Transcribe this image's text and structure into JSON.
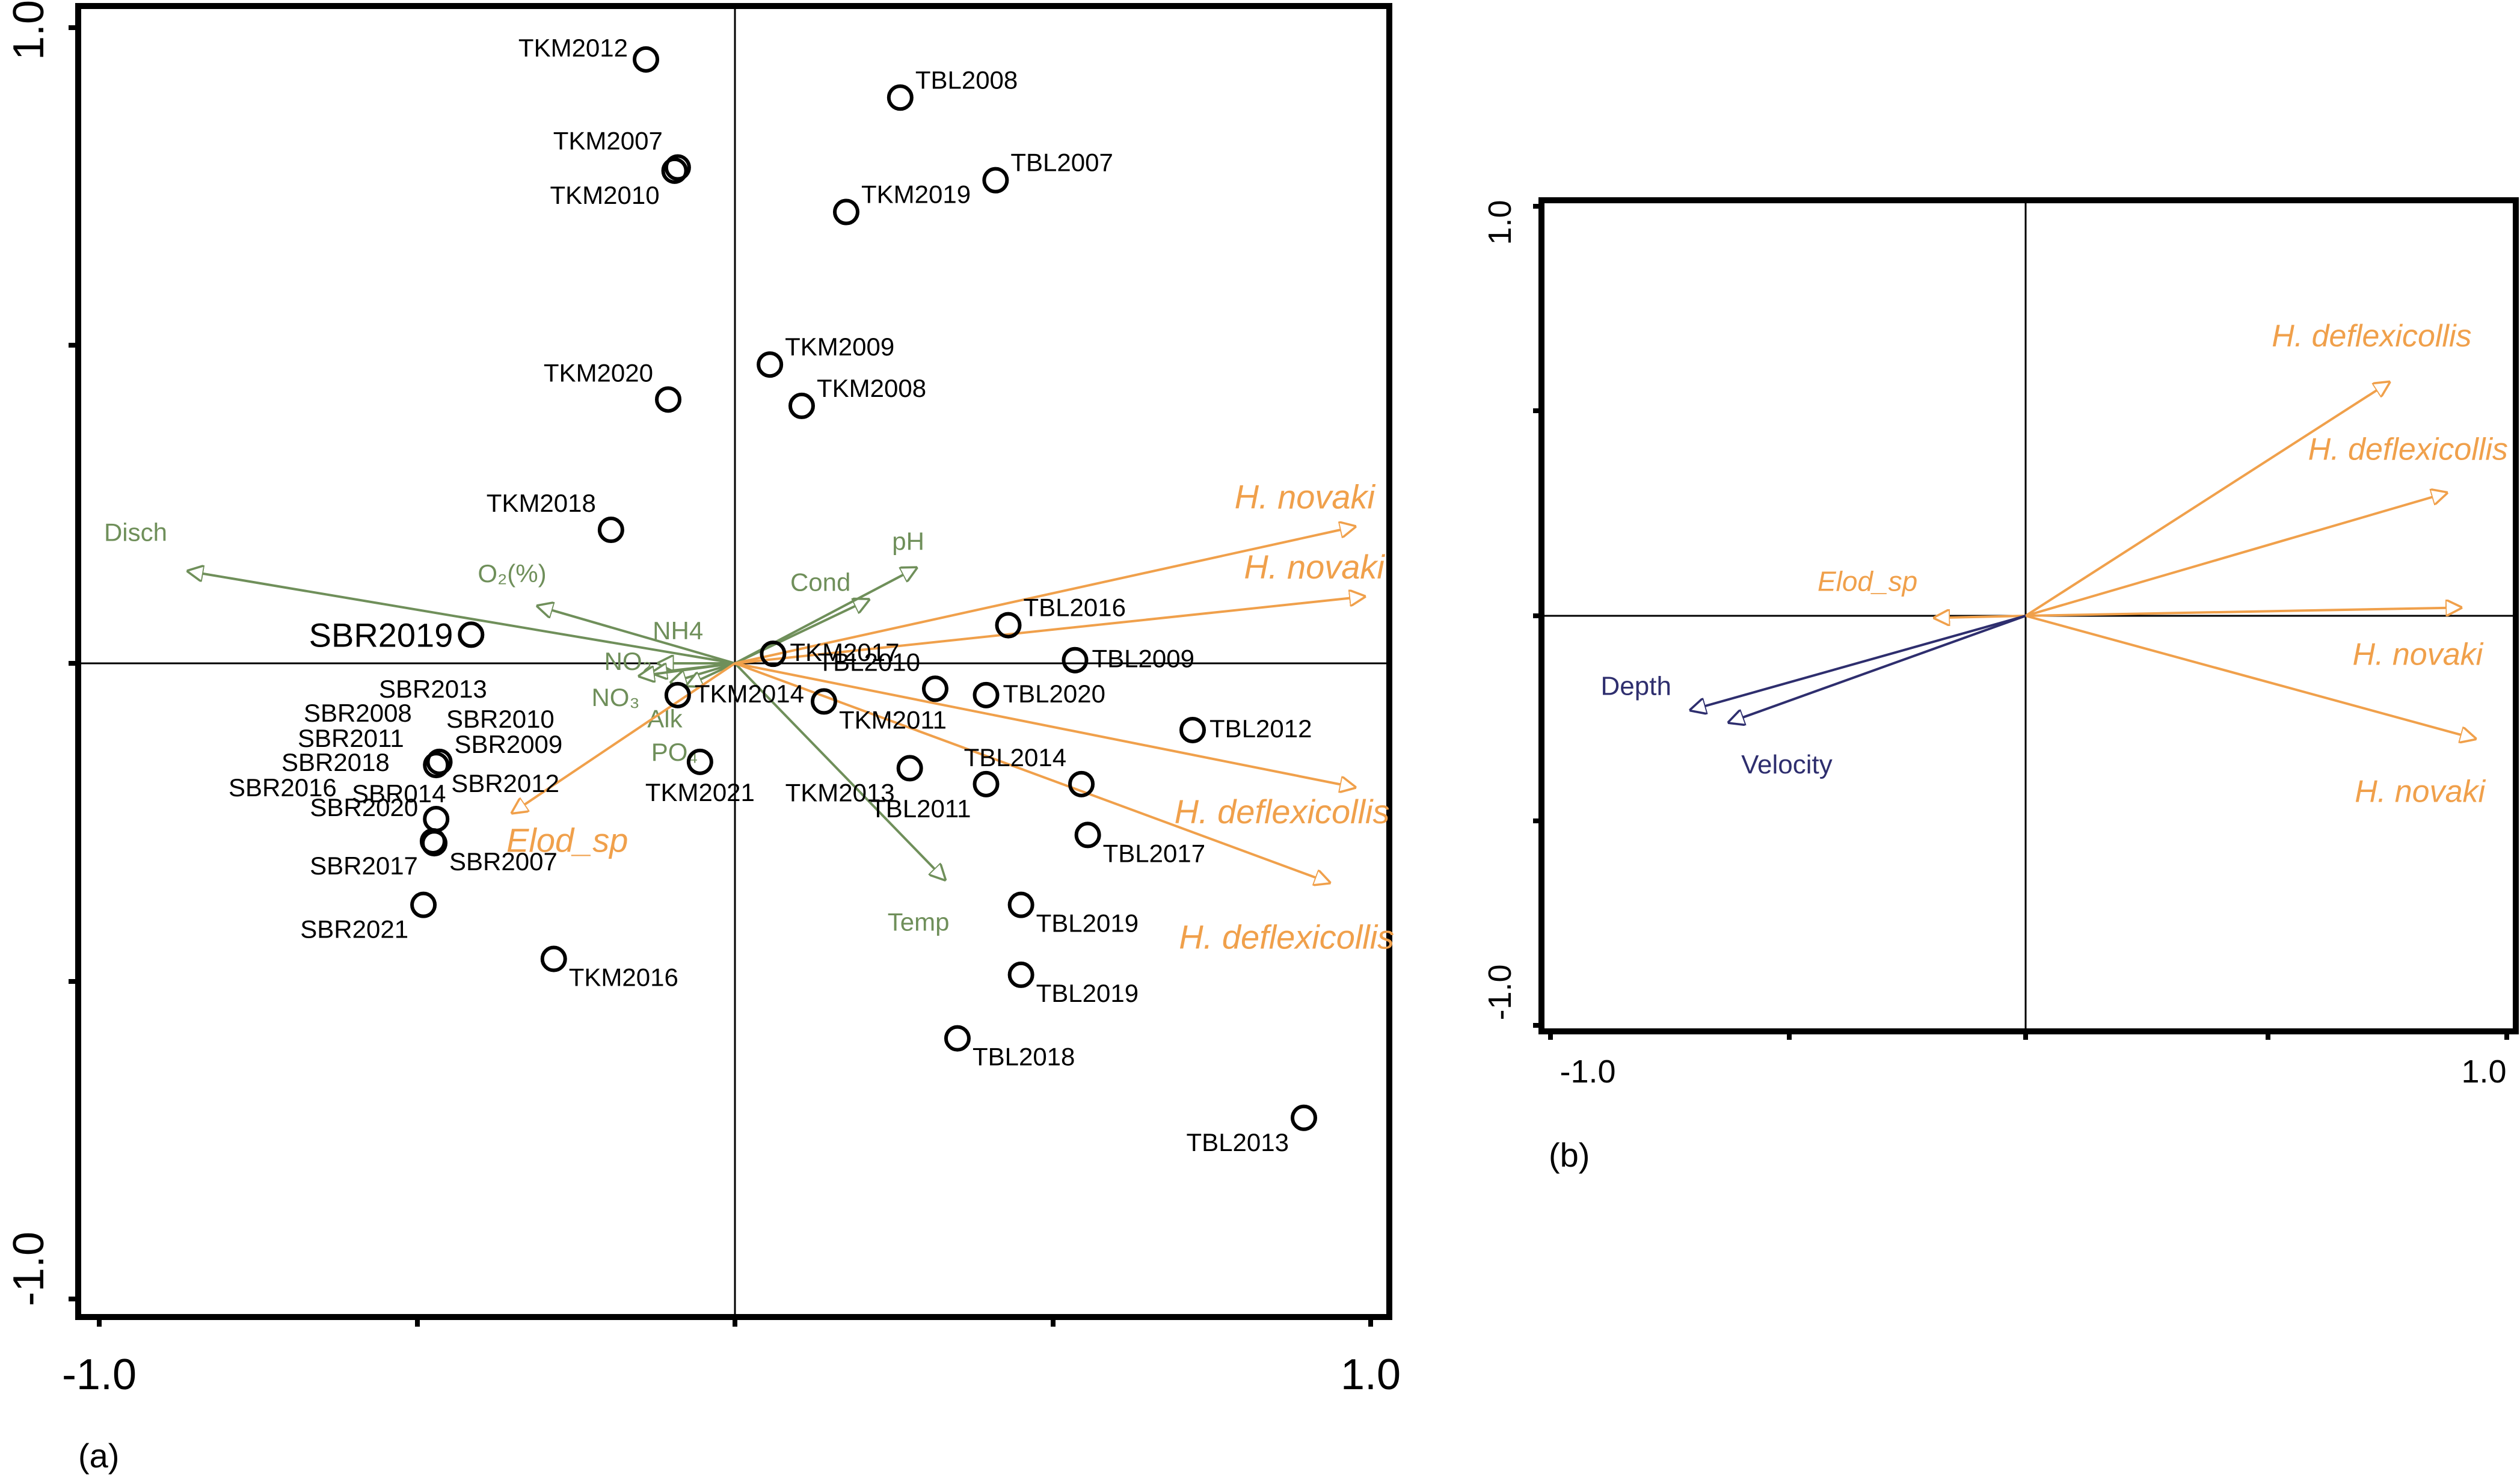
{
  "chart_data": [
    {
      "type": "biplot",
      "panel_label": "(a)",
      "xlim": [
        -1.0,
        1.0
      ],
      "ylim": [
        -1.0,
        1.0
      ],
      "x_tick_labels": [
        "-1.0",
        "1.0"
      ],
      "y_tick_labels": [
        "-1.0",
        "1.0"
      ],
      "sites": [
        {
          "name": "TKM2012",
          "x": -0.14,
          "y": 0.95,
          "label_side": "left"
        },
        {
          "name": "TKM2007",
          "x": -0.09,
          "y": 0.78,
          "label_side": "left-up"
        },
        {
          "name": "TKM2010",
          "x": -0.095,
          "y": 0.775,
          "label_side": "left-down"
        },
        {
          "name": "TBL2008",
          "x": 0.26,
          "y": 0.89,
          "label_side": "right-up"
        },
        {
          "name": "TBL2007",
          "x": 0.41,
          "y": 0.76,
          "label_side": "right-up"
        },
        {
          "name": "TKM2019",
          "x": 0.175,
          "y": 0.71,
          "label_side": "right-up"
        },
        {
          "name": "TKM2020",
          "x": -0.105,
          "y": 0.415,
          "label_side": "left-up"
        },
        {
          "name": "TKM2009",
          "x": 0.055,
          "y": 0.47,
          "label_side": "right-up"
        },
        {
          "name": "TKM2008",
          "x": 0.105,
          "y": 0.405,
          "label_side": "right-up"
        },
        {
          "name": "TKM2018",
          "x": -0.195,
          "y": 0.21,
          "label_side": "left-up"
        },
        {
          "name": "SBR2019",
          "x": -0.415,
          "y": 0.045,
          "label_side": "left-big"
        },
        {
          "name": "TBL2016",
          "x": 0.43,
          "y": 0.06,
          "label_side": "right-up"
        },
        {
          "name": "TKM2017",
          "x": 0.06,
          "y": 0.015,
          "label_side": "right"
        },
        {
          "name": "TBL2009",
          "x": 0.535,
          "y": 0.005,
          "label_side": "right"
        },
        {
          "name": "TBL2010",
          "x": 0.315,
          "y": -0.04,
          "label_side": "left-up"
        },
        {
          "name": "TBL2020",
          "x": 0.395,
          "y": -0.05,
          "label_side": "right"
        },
        {
          "name": "TKM2014",
          "x": -0.09,
          "y": -0.05,
          "label_side": "right"
        },
        {
          "name": "TKM2011",
          "x": 0.14,
          "y": -0.06,
          "label_side": "right-down"
        },
        {
          "name": "TBL2012",
          "x": 0.72,
          "y": -0.105,
          "label_side": "right"
        },
        {
          "name": "TKM2021",
          "x": -0.055,
          "y": -0.155,
          "label_side": "down"
        },
        {
          "name": "TKM2013",
          "x": 0.275,
          "y": -0.165,
          "label_side": "left-down"
        },
        {
          "name": "TBL2014",
          "x": 0.545,
          "y": -0.19,
          "label_side": "left-up"
        },
        {
          "name": "TBL2011",
          "x": 0.395,
          "y": -0.19,
          "label_side": "left-down"
        },
        {
          "name": "TBL2017",
          "x": 0.555,
          "y": -0.27,
          "label_side": "right-down"
        },
        {
          "name": "SBR2009",
          "x": -0.465,
          "y": -0.155,
          "label_side": "right-up"
        },
        {
          "name": "SBR2012",
          "x": -0.47,
          "y": -0.16,
          "label_side": "right-down"
        },
        {
          "name": "SBR2020",
          "x": -0.47,
          "y": -0.245,
          "label_side": "left"
        },
        {
          "name": "SBR2017",
          "x": -0.475,
          "y": -0.28,
          "label_side": "left-down"
        },
        {
          "name": "SBR2007",
          "x": -0.473,
          "y": -0.283,
          "label_side": "right-down"
        },
        {
          "name": "SBR2021",
          "x": -0.49,
          "y": -0.38,
          "label_side": "left-down"
        },
        {
          "name": "TBL2019",
          "x": 0.45,
          "y": -0.38,
          "label_side": "right-down"
        },
        {
          "name": "TBL2019",
          "x": 0.45,
          "y": -0.49,
          "label_side": "right-down"
        },
        {
          "name": "TKM2016",
          "x": -0.285,
          "y": -0.465,
          "label_side": "right-down"
        },
        {
          "name": "TBL2018",
          "x": 0.35,
          "y": -0.59,
          "label_side": "right-down"
        },
        {
          "name": "TBL2013",
          "x": 0.895,
          "y": -0.715,
          "label_side": "left-down"
        }
      ],
      "sbr_cluster_labels": [
        "SBR2013",
        "SBR2008",
        "SBR2010",
        "SBR2011",
        "SBR2018",
        "SBR2016",
        "SBR014"
      ],
      "env_vectors": [
        {
          "name": "Disch",
          "x": -0.86,
          "y": 0.145
        },
        {
          "name": "O₂(%)",
          "x": -0.31,
          "y": 0.09
        },
        {
          "name": "NH4",
          "x": -0.12,
          "y": 0.0
        },
        {
          "name": "NO₂",
          "x": -0.13,
          "y": -0.015
        },
        {
          "name": "NO₃",
          "x": -0.15,
          "y": -0.02
        },
        {
          "name": "Alk",
          "x": -0.1,
          "y": -0.03
        },
        {
          "name": "PO₄",
          "x": -0.075,
          "y": -0.035
        },
        {
          "name": "Cond",
          "x": 0.21,
          "y": 0.1
        },
        {
          "name": "pH",
          "x": 0.285,
          "y": 0.15
        },
        {
          "name": "Temp",
          "x": 0.33,
          "y": -0.34
        }
      ],
      "species_vectors": [
        {
          "name": "H. novaki",
          "x": 0.975,
          "y": 0.215
        },
        {
          "name": "H. novaki",
          "x": 0.99,
          "y": 0.105
        },
        {
          "name": "H. deflexicollis",
          "x": 0.975,
          "y": -0.195
        },
        {
          "name": "H. deflexicollis",
          "x": 0.935,
          "y": -0.345
        },
        {
          "name": "Elod_sp",
          "x": -0.35,
          "y": -0.235
        }
      ]
    },
    {
      "type": "biplot",
      "panel_label": "(b)",
      "xlim": [
        -1.0,
        1.0
      ],
      "ylim": [
        -1.0,
        1.0
      ],
      "x_tick_labels": [
        "-1.0",
        "1.0"
      ],
      "y_tick_labels": [
        "-1.0",
        "1.0"
      ],
      "species_vectors": [
        {
          "name": "H. deflexicollis",
          "x": 0.76,
          "y": 0.57
        },
        {
          "name": "H. deflexicollis",
          "x": 0.88,
          "y": 0.3
        },
        {
          "name": "H. novaki",
          "x": 0.91,
          "y": 0.02
        },
        {
          "name": "H. novaki",
          "x": 0.94,
          "y": -0.3
        },
        {
          "name": "Elod_sp",
          "x": -0.19,
          "y": -0.005
        }
      ],
      "env_vectors": [
        {
          "name": "Depth",
          "x": -0.7,
          "y": -0.23
        },
        {
          "name": "Velocity",
          "x": -0.62,
          "y": -0.26
        }
      ]
    }
  ]
}
